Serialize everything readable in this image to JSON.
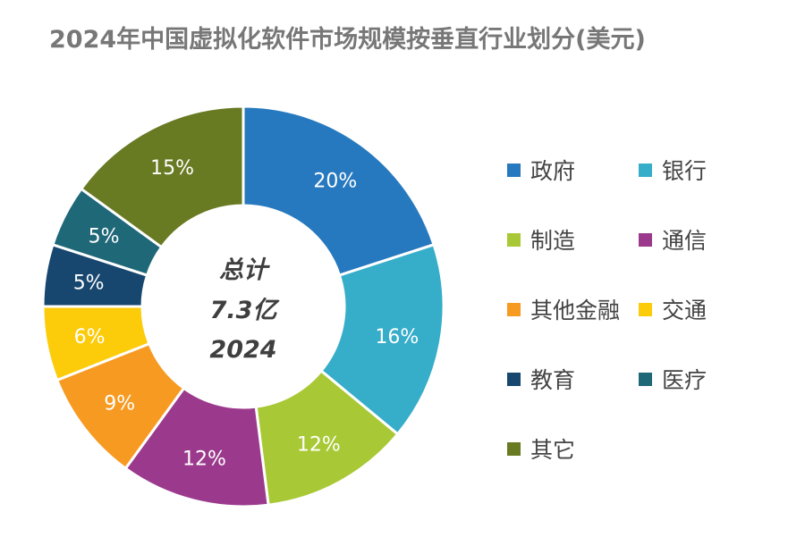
{
  "chart_data": {
    "type": "pie",
    "title": "2024年中国虚拟化软件市场规模按垂直行业划分(美元)",
    "center_text": [
      "总计",
      "7.3亿",
      "2024"
    ],
    "categories": [
      "政府",
      "银行",
      "制造",
      "通信",
      "其他金融",
      "交通",
      "教育",
      "医疗",
      "其它"
    ],
    "values": [
      20,
      16,
      12,
      12,
      9,
      6,
      5,
      5,
      15
    ],
    "labels": [
      "20%",
      "16%",
      "12%",
      "12%",
      "9%",
      "6%",
      "5%",
      "5%",
      "15%"
    ],
    "unit": "%",
    "colors": [
      "#2779bf",
      "#36adc9",
      "#a8c935",
      "#9b3a8d",
      "#f79a22",
      "#fccb0a",
      "#17476f",
      "#1f6878",
      "#687a22"
    ],
    "legend_position": "right"
  }
}
